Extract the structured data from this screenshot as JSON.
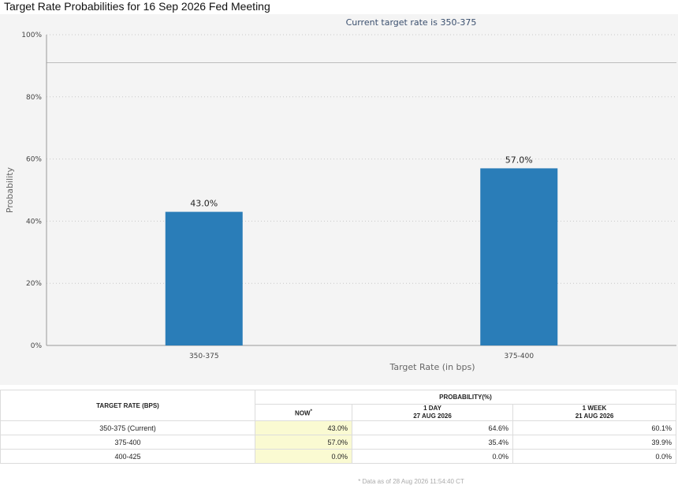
{
  "page": {
    "title": "Target Rate Probabilities for 16 Sep 2026 Fed Meeting"
  },
  "chart_data": {
    "type": "bar",
    "subtitle": "Current target rate is 350-375",
    "categories": [
      "350-375",
      "375-400"
    ],
    "values": [
      43.0,
      57.0
    ],
    "data_labels": [
      "43.0%",
      "57.0%"
    ],
    "xlabel": "Target Rate (in bps)",
    "ylabel": "Probability",
    "ylim": [
      0,
      100
    ],
    "yticks": [
      "0%",
      "20%",
      "40%",
      "60%",
      "80%",
      "100%"
    ],
    "ytick_values": [
      0,
      20,
      40,
      60,
      80,
      100
    ],
    "reference_line": 91,
    "grid": true,
    "bar_color": "#2a7db8"
  },
  "table": {
    "col_target": "TARGET RATE (BPS)",
    "col_probability": "PROBABILITY(%)",
    "sub_now": "NOW",
    "sub_now_mark": "*",
    "sub_1day": "1 DAY",
    "sub_1day_date": "27 AUG 2026",
    "sub_1week": "1 WEEK",
    "sub_1week_date": "21 AUG 2026",
    "rows": [
      {
        "rate": "350-375 (Current)",
        "now": "43.0%",
        "day": "64.6%",
        "week": "60.1%"
      },
      {
        "rate": "375-400",
        "now": "57.0%",
        "day": "35.4%",
        "week": "39.9%"
      },
      {
        "rate": "400-425",
        "now": "0.0%",
        "day": "0.0%",
        "week": "0.0%"
      }
    ]
  },
  "footnote": "* Data as of 28 Aug 2026 11:54:40 CT"
}
